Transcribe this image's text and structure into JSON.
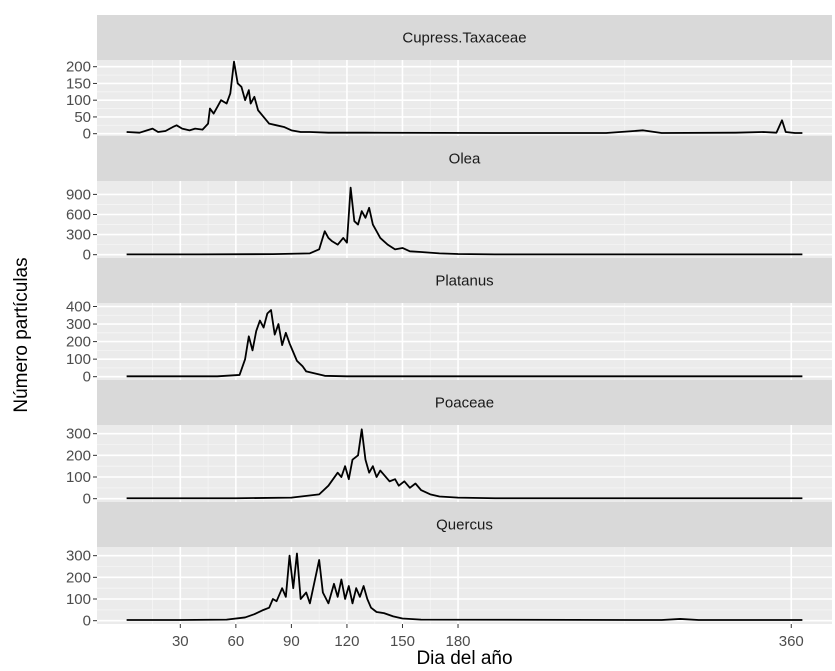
{
  "chart_data": {
    "type": "line",
    "layout": "facet-grid-vertical",
    "xlabel": "Dia del año",
    "ylabel": "Número partículas",
    "x_range": [
      1,
      366
    ],
    "x_ticks": [
      30,
      60,
      90,
      120,
      150,
      180,
      360
    ],
    "grid": true,
    "colors": {
      "panel_bg": "#ebebeb",
      "strip_bg": "#d9d9d9",
      "line": "#000000",
      "grid_major": "#ffffff",
      "grid_minor": "#f5f5f5",
      "tick_text": "#4d4d4d"
    },
    "panels": [
      {
        "label": "Cupress.Taxaceae",
        "ylim": [
          0,
          220
        ],
        "y_ticks": [
          0,
          50,
          100,
          150,
          200
        ],
        "points": [
          [
            1,
            5
          ],
          [
            8,
            3
          ],
          [
            12,
            10
          ],
          [
            15,
            15
          ],
          [
            18,
            5
          ],
          [
            22,
            8
          ],
          [
            26,
            20
          ],
          [
            28,
            25
          ],
          [
            31,
            15
          ],
          [
            35,
            10
          ],
          [
            38,
            15
          ],
          [
            42,
            12
          ],
          [
            45,
            30
          ],
          [
            46,
            75
          ],
          [
            48,
            60
          ],
          [
            50,
            80
          ],
          [
            52,
            100
          ],
          [
            55,
            90
          ],
          [
            57,
            120
          ],
          [
            59,
            215
          ],
          [
            61,
            150
          ],
          [
            63,
            140
          ],
          [
            65,
            100
          ],
          [
            67,
            130
          ],
          [
            68,
            90
          ],
          [
            70,
            110
          ],
          [
            72,
            70
          ],
          [
            75,
            50
          ],
          [
            78,
            30
          ],
          [
            82,
            25
          ],
          [
            86,
            20
          ],
          [
            90,
            10
          ],
          [
            95,
            5
          ],
          [
            100,
            5
          ],
          [
            110,
            3
          ],
          [
            130,
            3
          ],
          [
            200,
            2
          ],
          [
            260,
            2
          ],
          [
            280,
            10
          ],
          [
            290,
            2
          ],
          [
            330,
            3
          ],
          [
            345,
            5
          ],
          [
            352,
            3
          ],
          [
            355,
            40
          ],
          [
            357,
            5
          ],
          [
            362,
            2
          ],
          [
            366,
            2
          ]
        ]
      },
      {
        "label": "Olea",
        "ylim": [
          0,
          1100
        ],
        "y_ticks": [
          0,
          300,
          600,
          900
        ],
        "points": [
          [
            1,
            5
          ],
          [
            40,
            5
          ],
          [
            80,
            8
          ],
          [
            100,
            20
          ],
          [
            105,
            80
          ],
          [
            108,
            350
          ],
          [
            110,
            250
          ],
          [
            112,
            200
          ],
          [
            115,
            150
          ],
          [
            118,
            250
          ],
          [
            120,
            180
          ],
          [
            122,
            1000
          ],
          [
            124,
            500
          ],
          [
            126,
            450
          ],
          [
            128,
            650
          ],
          [
            130,
            550
          ],
          [
            132,
            700
          ],
          [
            134,
            450
          ],
          [
            136,
            350
          ],
          [
            138,
            250
          ],
          [
            142,
            150
          ],
          [
            146,
            80
          ],
          [
            150,
            100
          ],
          [
            154,
            50
          ],
          [
            160,
            40
          ],
          [
            170,
            20
          ],
          [
            180,
            10
          ],
          [
            200,
            5
          ],
          [
            260,
            5
          ],
          [
            366,
            5
          ]
        ]
      },
      {
        "label": "Platanus",
        "ylim": [
          0,
          420
        ],
        "y_ticks": [
          0,
          100,
          200,
          300,
          400
        ],
        "points": [
          [
            1,
            2
          ],
          [
            50,
            2
          ],
          [
            62,
            10
          ],
          [
            65,
            100
          ],
          [
            67,
            230
          ],
          [
            69,
            150
          ],
          [
            71,
            260
          ],
          [
            73,
            320
          ],
          [
            75,
            280
          ],
          [
            77,
            360
          ],
          [
            79,
            380
          ],
          [
            81,
            240
          ],
          [
            83,
            300
          ],
          [
            85,
            180
          ],
          [
            87,
            250
          ],
          [
            89,
            190
          ],
          [
            91,
            140
          ],
          [
            93,
            90
          ],
          [
            96,
            60
          ],
          [
            98,
            30
          ],
          [
            102,
            20
          ],
          [
            108,
            5
          ],
          [
            120,
            2
          ],
          [
            366,
            2
          ]
        ]
      },
      {
        "label": "Poaceae",
        "ylim": [
          0,
          340
        ],
        "y_ticks": [
          0,
          100,
          200,
          300
        ],
        "points": [
          [
            1,
            2
          ],
          [
            60,
            2
          ],
          [
            90,
            5
          ],
          [
            105,
            20
          ],
          [
            110,
            60
          ],
          [
            115,
            120
          ],
          [
            117,
            100
          ],
          [
            119,
            150
          ],
          [
            121,
            90
          ],
          [
            123,
            180
          ],
          [
            126,
            200
          ],
          [
            128,
            320
          ],
          [
            130,
            180
          ],
          [
            132,
            120
          ],
          [
            134,
            150
          ],
          [
            136,
            100
          ],
          [
            138,
            130
          ],
          [
            140,
            110
          ],
          [
            143,
            80
          ],
          [
            146,
            90
          ],
          [
            148,
            60
          ],
          [
            151,
            80
          ],
          [
            154,
            50
          ],
          [
            157,
            70
          ],
          [
            160,
            40
          ],
          [
            165,
            20
          ],
          [
            170,
            10
          ],
          [
            180,
            5
          ],
          [
            200,
            2
          ],
          [
            366,
            2
          ]
        ]
      },
      {
        "label": "Quercus",
        "ylim": [
          0,
          340
        ],
        "y_ticks": [
          0,
          100,
          200,
          300
        ],
        "points": [
          [
            1,
            3
          ],
          [
            30,
            3
          ],
          [
            55,
            5
          ],
          [
            65,
            15
          ],
          [
            70,
            30
          ],
          [
            75,
            50
          ],
          [
            78,
            60
          ],
          [
            80,
            100
          ],
          [
            82,
            90
          ],
          [
            85,
            150
          ],
          [
            87,
            110
          ],
          [
            89,
            300
          ],
          [
            91,
            150
          ],
          [
            93,
            310
          ],
          [
            95,
            100
          ],
          [
            98,
            130
          ],
          [
            100,
            80
          ],
          [
            103,
            200
          ],
          [
            105,
            280
          ],
          [
            107,
            130
          ],
          [
            110,
            80
          ],
          [
            113,
            170
          ],
          [
            115,
            110
          ],
          [
            117,
            190
          ],
          [
            119,
            100
          ],
          [
            121,
            160
          ],
          [
            123,
            80
          ],
          [
            125,
            150
          ],
          [
            127,
            110
          ],
          [
            129,
            160
          ],
          [
            131,
            100
          ],
          [
            133,
            60
          ],
          [
            136,
            40
          ],
          [
            140,
            35
          ],
          [
            145,
            20
          ],
          [
            150,
            10
          ],
          [
            160,
            5
          ],
          [
            290,
            3
          ],
          [
            300,
            8
          ],
          [
            310,
            3
          ],
          [
            366,
            3
          ]
        ]
      }
    ]
  }
}
